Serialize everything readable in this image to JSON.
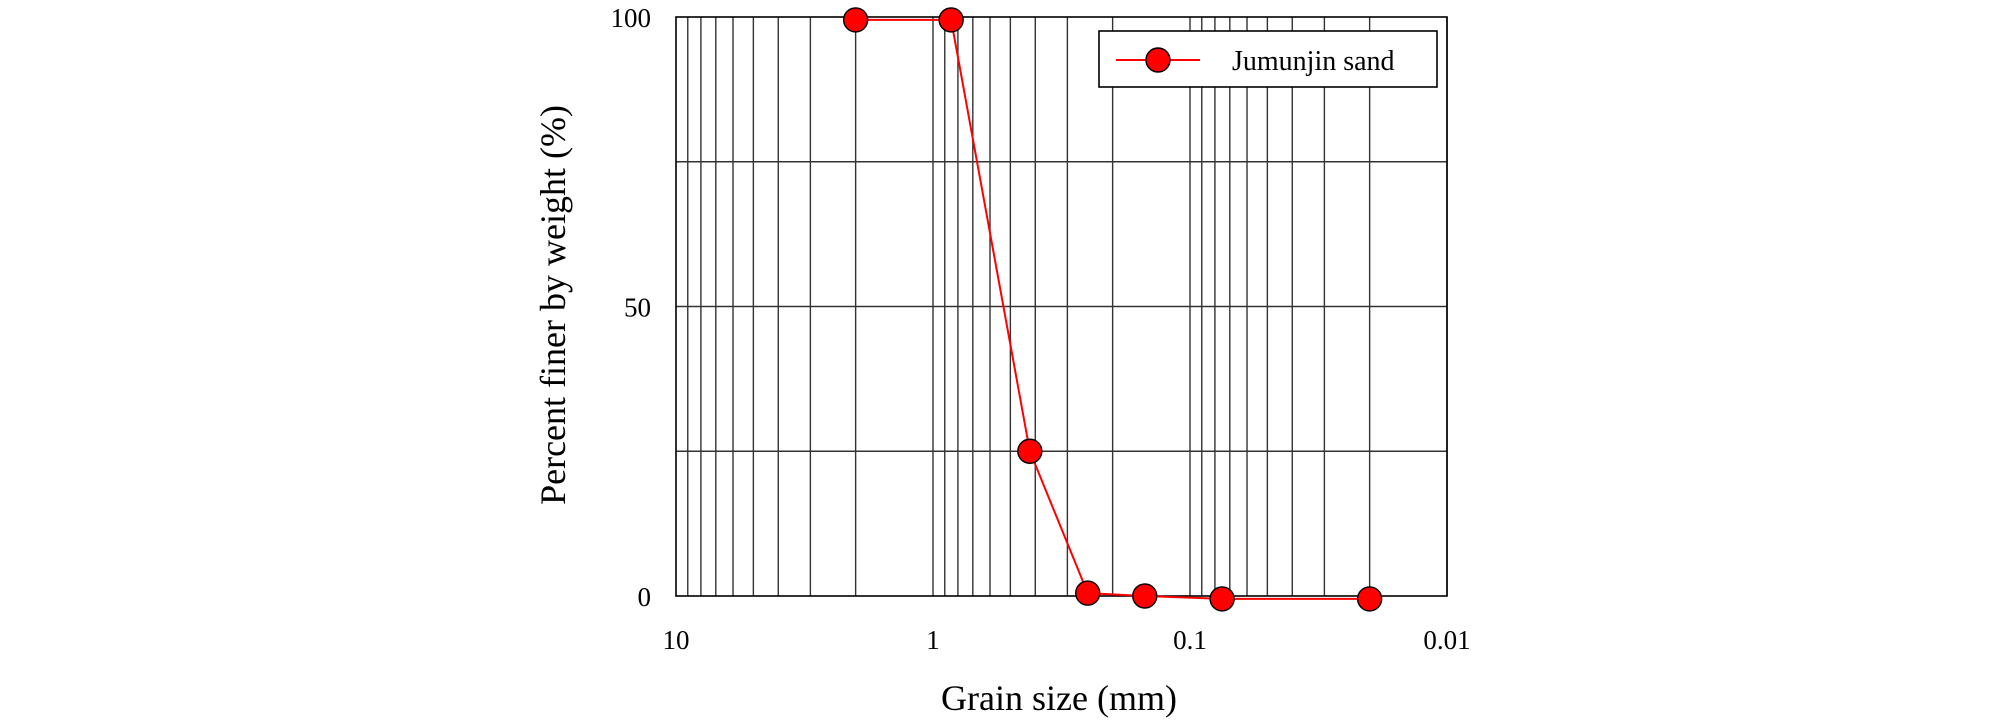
{
  "chart_data": {
    "type": "line",
    "title": "",
    "xlabel": "Grain size (mm)",
    "ylabel": "Percent finer by weight (%)",
    "x_scale": "log",
    "x_reversed": true,
    "xlim": [
      10,
      0.01
    ],
    "ylim": [
      0,
      100
    ],
    "x_ticks": [
      {
        "value": 10,
        "label": "10"
      },
      {
        "value": 1,
        "label": "1"
      },
      {
        "value": 0.1,
        "label": "0.1"
      },
      {
        "value": 0.01,
        "label": "0.01"
      }
    ],
    "y_ticks": [
      {
        "value": 0,
        "label": "0"
      },
      {
        "value": 50,
        "label": "50"
      },
      {
        "value": 100,
        "label": "100"
      }
    ],
    "grid": true,
    "legend": {
      "placement": "top-right"
    },
    "series": [
      {
        "name": "Jumunjin sand",
        "color": "#ff0000",
        "x": [
          2.0,
          0.85,
          0.42,
          0.25,
          0.15,
          0.075,
          0.02
        ],
        "y": [
          99.5,
          99.5,
          25,
          0.5,
          0,
          -0.5,
          -0.5
        ]
      }
    ]
  }
}
